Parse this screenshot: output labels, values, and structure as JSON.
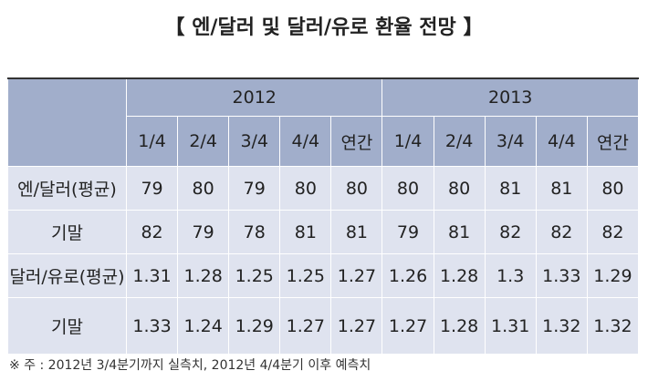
{
  "title": "【 엔/달러 및 달러/유로 환율 전망 】",
  "table": {
    "years": [
      "2012",
      "2013"
    ],
    "periods": [
      "1/4",
      "2/4",
      "3/4",
      "4/4",
      "연간",
      "1/4",
      "2/4",
      "3/4",
      "4/4",
      "연간"
    ],
    "rows": [
      {
        "label": "엔/달러(평균)",
        "cells": [
          "79",
          "80",
          "79",
          "80",
          "80",
          "80",
          "80",
          "81",
          "81",
          "80"
        ]
      },
      {
        "label": "기말",
        "cells": [
          "82",
          "79",
          "78",
          "81",
          "81",
          "79",
          "81",
          "82",
          "82",
          "82"
        ]
      },
      {
        "label": "달러/유로(평균)",
        "cells": [
          "1.31",
          "1.28",
          "1.25",
          "1.25",
          "1.27",
          "1.26",
          "1.28",
          "1.3",
          "1.33",
          "1.29"
        ]
      },
      {
        "label": "기말",
        "cells": [
          "1.33",
          "1.24",
          "1.29",
          "1.27",
          "1.27",
          "1.27",
          "1.28",
          "1.31",
          "1.32",
          "1.32"
        ]
      }
    ]
  },
  "note": "※ 주 : 2012년 3/4분기까지 실측치, 2012년 4/4분기 이후 예측치"
}
